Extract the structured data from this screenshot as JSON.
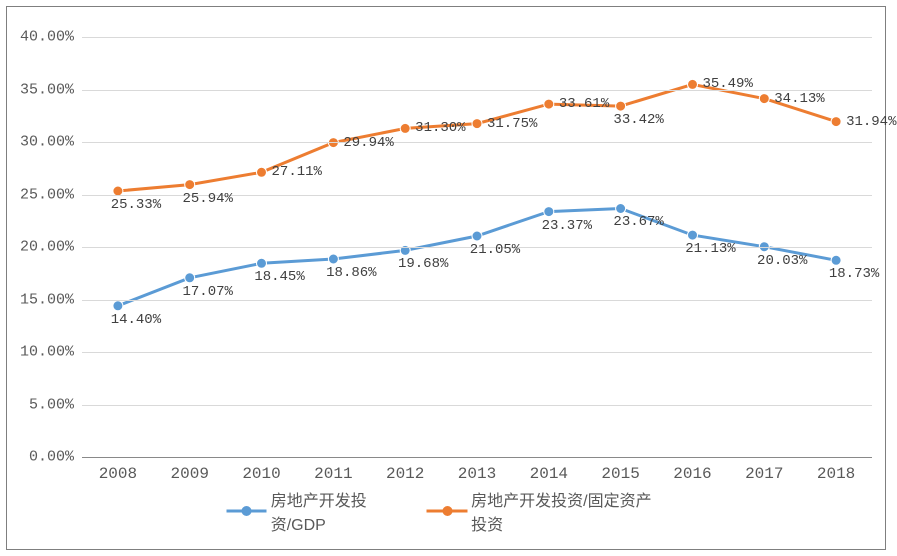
{
  "chart": {
    "type": "line",
    "background_color": "#ffffff",
    "border_color": "#7f7f7f",
    "grid_color": "#d9d9d9",
    "axis_line_color": "#898989",
    "text_color": "#595959",
    "tick_fontsize": 15,
    "category_fontsize": 16,
    "value_label_fontsize": 14,
    "line_width": 3,
    "marker_radius": 5,
    "marker_stroke": "#ffffff",
    "ylim": [
      0,
      40
    ],
    "ytick_step": 5,
    "y_tick_format": "0.00%",
    "yticks": [
      "0.00%",
      "5.00%",
      "10.00%",
      "15.00%",
      "20.00%",
      "25.00%",
      "30.00%",
      "35.00%",
      "40.00%"
    ],
    "categories": [
      "2008",
      "2009",
      "2010",
      "2011",
      "2012",
      "2013",
      "2014",
      "2015",
      "2016",
      "2017",
      "2018"
    ],
    "series": [
      {
        "name": "房地产开发投资/GDP",
        "color": "#5b9bd5",
        "values": [
          14.4,
          17.07,
          18.45,
          18.86,
          19.68,
          21.05,
          23.37,
          23.67,
          21.13,
          20.03,
          18.73
        ],
        "value_labels": [
          "14.40%",
          "17.07%",
          "18.45%",
          "18.86%",
          "19.68%",
          "21.05%",
          "23.37%",
          "23.67%",
          "21.13%",
          "20.03%",
          "18.73%"
        ],
        "labels_above": false
      },
      {
        "name": "房地产开发投资/固定资产投资",
        "color": "#ed7d31",
        "values": [
          25.33,
          25.94,
          27.11,
          29.94,
          31.3,
          31.75,
          33.61,
          33.42,
          35.49,
          34.13,
          31.94
        ],
        "value_labels": [
          "25.33%",
          "25.94%",
          "27.11%",
          "29.94%",
          "31.30%",
          "31.75%",
          "33.61%",
          "33.42%",
          "35.49%",
          "34.13%",
          "31.94%"
        ],
        "labels_above": true,
        "label_above_indices": [
          0,
          1,
          7
        ],
        "label_right_indices": [
          2,
          3,
          4,
          5,
          6,
          8,
          9,
          10
        ]
      }
    ]
  }
}
